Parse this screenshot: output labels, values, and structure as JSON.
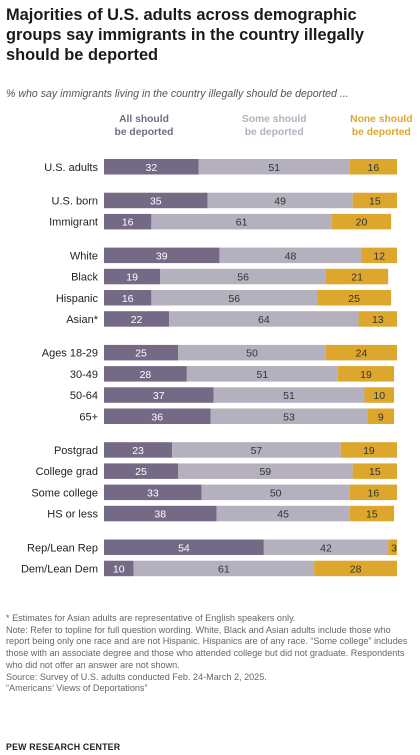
{
  "title": "Majorities of U.S. adults across demographic groups say immigrants in the country illegally should be deported",
  "subtitle": "% who say immigrants living in the country illegally should be deported ...",
  "chart_data": {
    "type": "bar",
    "orientation": "horizontal",
    "stacked": true,
    "xlim": [
      0,
      100
    ],
    "grid": false,
    "legend_position": "top",
    "categories": [
      "U.S. adults",
      "U.S. born",
      "Immigrant",
      "White",
      "Black",
      "Hispanic",
      "Asian*",
      "Ages 18-29",
      "30-49",
      "50-64",
      "65+",
      "Postgrad",
      "College grad",
      "Some college",
      "HS or less",
      "Rep/Lean Rep",
      "Dem/Lean Dem"
    ],
    "groups": [
      [
        0
      ],
      [
        1,
        2
      ],
      [
        3,
        4,
        5,
        6
      ],
      [
        7,
        8,
        9,
        10
      ],
      [
        11,
        12,
        13,
        14
      ],
      [
        15,
        16
      ]
    ],
    "series": [
      {
        "name": "All should be deported",
        "color": "#746a85",
        "label_color": "#ffffff",
        "values": [
          32,
          35,
          16,
          39,
          19,
          16,
          22,
          25,
          28,
          37,
          36,
          23,
          25,
          33,
          38,
          54,
          10
        ]
      },
      {
        "name": "Some should be deported",
        "color": "#b4b0be",
        "label_color": "#333333",
        "values": [
          51,
          49,
          61,
          48,
          56,
          56,
          64,
          50,
          51,
          51,
          53,
          57,
          59,
          50,
          45,
          42,
          61
        ]
      },
      {
        "name": "None should be deported",
        "color": "#dca72c",
        "label_color": "#333333",
        "values": [
          16,
          15,
          20,
          12,
          21,
          25,
          13,
          24,
          19,
          10,
          9,
          19,
          15,
          16,
          15,
          3,
          28
        ]
      }
    ]
  },
  "notes": {
    "asterisk": "* Estimates for Asian adults are representative of English speakers only.",
    "note": "Note: Refer to topline for full question wording. White, Black and Asian adults include those who report being only one race and are not Hispanic. Hispanics are of any race. “Some college” includes those with an associate degree and those who attended college but did not graduate. Respondents who did not offer an answer are not shown.",
    "source": "Source: Survey of U.S. adults conducted Feb. 24-March 2, 2025.",
    "report": "“Americans’ Views of Deportations”"
  },
  "brand": "PEW RESEARCH CENTER"
}
